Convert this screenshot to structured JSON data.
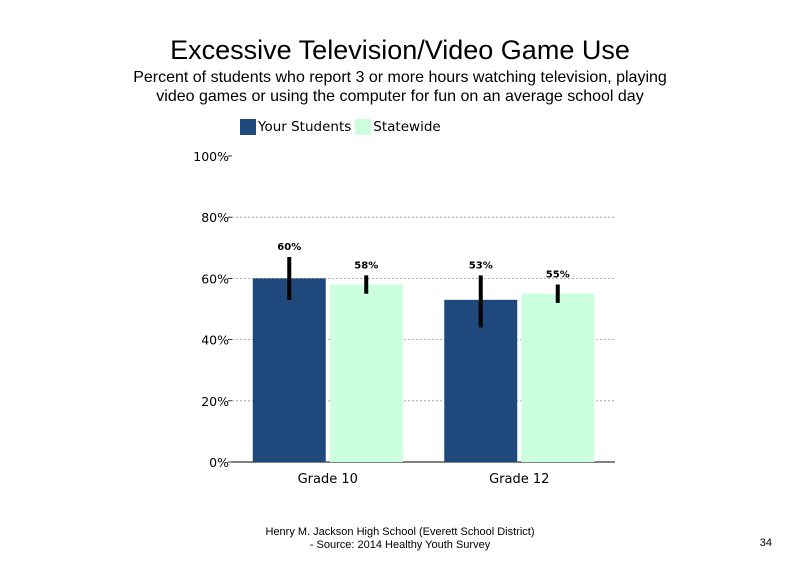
{
  "title": "Excessive Television/Video Game Use",
  "subtitle": "Percent of students who report 3 or more hours watching television, playing video games or using the computer for fun on an average school day",
  "footer": {
    "line1": "Henry M. Jackson High School (Everett School District)",
    "line2": "- Source: 2014 Healthy Youth Survey"
  },
  "page_number": "34",
  "chart_data": {
    "type": "bar",
    "categories": [
      "Grade 10",
      "Grade 12"
    ],
    "series": [
      {
        "name": "Your Students",
        "color": "#1F497D",
        "values": [
          60,
          53
        ],
        "labels": [
          "60%",
          "53%"
        ],
        "error": [
          [
            53,
            67
          ],
          [
            44,
            61
          ]
        ]
      },
      {
        "name": "Statewide",
        "color": "#CCFFDD",
        "values": [
          58,
          55
        ],
        "labels": [
          "58%",
          "55%"
        ],
        "error": [
          [
            55,
            61
          ],
          [
            52,
            58
          ]
        ]
      }
    ],
    "ylim": [
      0,
      100
    ],
    "yticks": [
      0,
      20,
      40,
      60,
      80,
      100
    ],
    "ytick_labels": [
      "0%",
      "20%",
      "40%",
      "60%",
      "80%",
      "100%"
    ],
    "grid": true,
    "legend_position": "top-left"
  }
}
